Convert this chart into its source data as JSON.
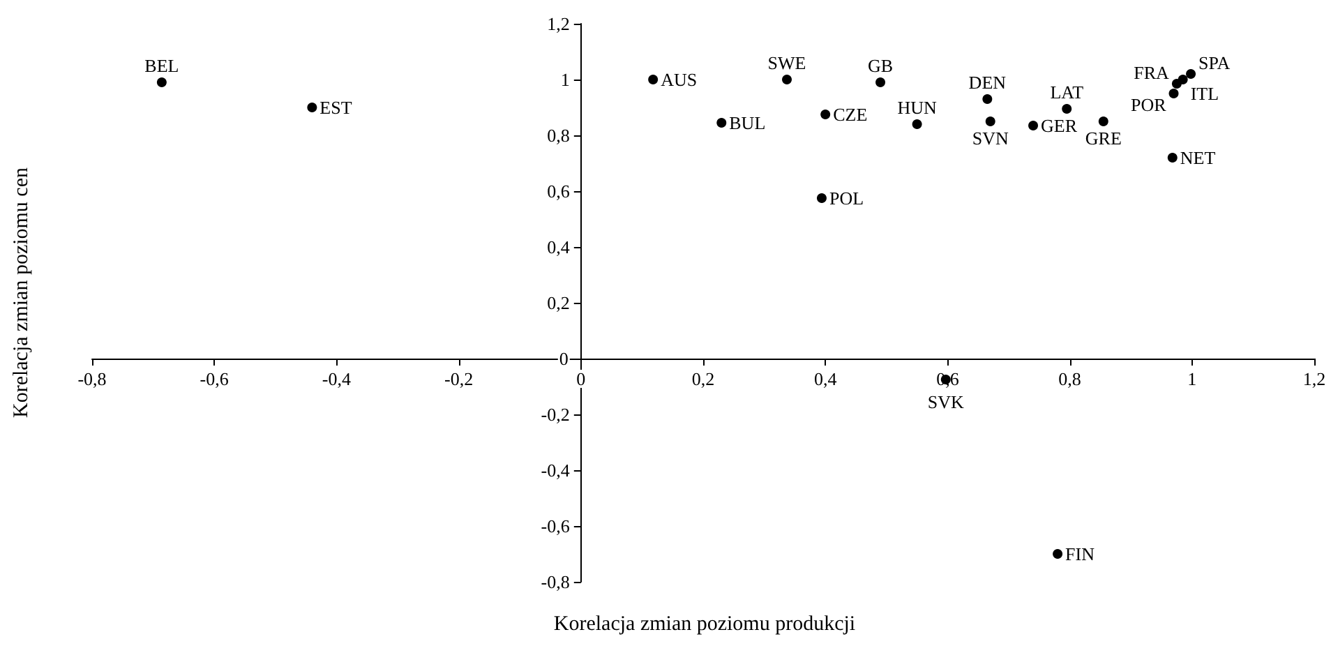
{
  "chart_data": {
    "type": "scatter",
    "xlabel": "Korelacja zmian poziomu produkcji",
    "ylabel": "Korelacja zmian poziomu cen",
    "x": [
      -0.686,
      -0.44,
      0.118,
      0.337,
      0.49,
      0.23,
      0.4,
      0.394,
      0.55,
      0.665,
      0.67,
      0.74,
      0.795,
      0.855,
      0.968,
      0.975,
      0.998,
      0.985,
      0.97,
      0.597,
      0.78
    ],
    "values": [
      0.99,
      0.9,
      1.0,
      1.0,
      0.99,
      0.845,
      0.875,
      0.575,
      0.84,
      0.93,
      0.85,
      0.835,
      0.895,
      0.85,
      0.72,
      0.985,
      1.02,
      1.0,
      0.95,
      -0.075,
      -0.7
    ],
    "value_labels": [
      "BEL",
      "EST",
      "AUS",
      "SWE",
      "GB",
      "BUL",
      "CZE",
      "POL",
      "HUN",
      "DEN",
      "SVN",
      "GER",
      "LAT",
      "GRE",
      "NET",
      "FRA",
      "SPA",
      "ITL",
      "POR",
      "SVK",
      "FIN"
    ],
    "color": "#000000",
    "marker": "circle",
    "grid": false,
    "xlim": [
      -0.8,
      1.2
    ],
    "ylim": [
      -0.8,
      1.2
    ],
    "xticks": [
      {
        "value": -0.8,
        "label": "-0,8"
      },
      {
        "value": -0.6,
        "label": "-0,6"
      },
      {
        "value": -0.4,
        "label": "-0,4"
      },
      {
        "value": -0.2,
        "label": "-0,2"
      },
      0,
      {
        "value": 0.2,
        "label": "0,2"
      },
      {
        "value": 0.4,
        "label": "0,4"
      },
      {
        "value": 0.6,
        "label": "0,6"
      },
      {
        "value": 0.8,
        "label": "0,8"
      },
      1,
      {
        "value": 1.2,
        "label": "1,2"
      }
    ],
    "yticks": [
      {
        "value": -0.8,
        "label": "-0,8"
      },
      {
        "value": -0.6,
        "label": "-0,6"
      },
      {
        "value": -0.4,
        "label": "-0,4"
      },
      {
        "value": -0.2,
        "label": "-0,2"
      },
      0,
      {
        "value": 0.2,
        "label": "0,2"
      },
      {
        "value": 0.4,
        "label": "0,4"
      },
      {
        "value": 0.6,
        "label": "0,6"
      },
      {
        "value": 0.8,
        "label": "0,8"
      },
      1,
      {
        "value": 1.2,
        "label": "1,2"
      }
    ]
  }
}
